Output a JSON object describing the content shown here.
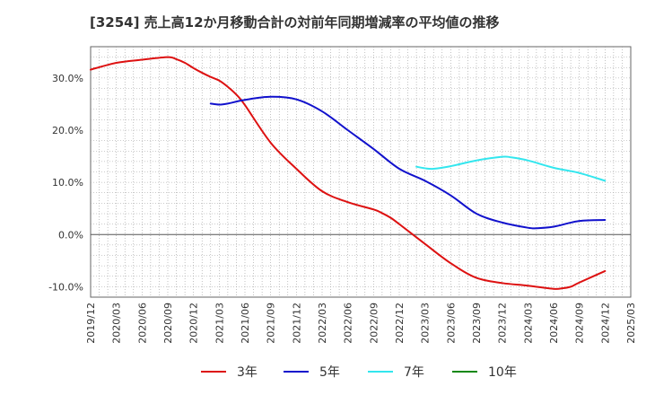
{
  "chart_data": {
    "type": "line",
    "title": "[3254]  売上高12か月移動合計の対前年同期増減率の平均値の推移",
    "xlabel": "",
    "ylabel": "",
    "x_ticks": [
      "2019/12",
      "2020/03",
      "2020/06",
      "2020/09",
      "2020/12",
      "2021/03",
      "2021/06",
      "2021/09",
      "2021/12",
      "2022/03",
      "2022/06",
      "2022/09",
      "2022/12",
      "2023/03",
      "2023/06",
      "2023/09",
      "2023/12",
      "2024/03",
      "2024/06",
      "2024/09",
      "2024/12",
      "2025/03"
    ],
    "y_ticks": [
      30,
      20,
      10,
      0,
      -10
    ],
    "y_tick_labels": [
      "30.0%",
      "20.0%",
      "10.0%",
      "0.0%",
      "-10.0%"
    ],
    "ylim": [
      -12,
      36
    ],
    "grid": true,
    "legend_position": "bottom",
    "series": [
      {
        "name": "3年",
        "color": "#dd1111",
        "points": [
          [
            "2019/12",
            31.6
          ],
          [
            "2020/03",
            32.9
          ],
          [
            "2020/06",
            33.5
          ],
          [
            "2020/09",
            34.0
          ],
          [
            "2020/10",
            33.6
          ],
          [
            "2020/11",
            32.9
          ],
          [
            "2020/12",
            31.9
          ],
          [
            "2021/01",
            31.0
          ],
          [
            "2021/02",
            30.2
          ],
          [
            "2021/03",
            29.5
          ],
          [
            "2021/04",
            28.3
          ],
          [
            "2021/05",
            26.8
          ],
          [
            "2021/06",
            24.8
          ],
          [
            "2021/09",
            17.6
          ],
          [
            "2021/12",
            12.6
          ],
          [
            "2022/03",
            8.3
          ],
          [
            "2022/06",
            6.2
          ],
          [
            "2022/09",
            4.8
          ],
          [
            "2022/10",
            4.1
          ],
          [
            "2022/11",
            3.2
          ],
          [
            "2022/12",
            2.0
          ],
          [
            "2023/03",
            -1.8
          ],
          [
            "2023/06",
            -5.5
          ],
          [
            "2023/09",
            -8.3
          ],
          [
            "2023/12",
            -9.3
          ],
          [
            "2024/03",
            -9.8
          ],
          [
            "2024/06",
            -10.4
          ],
          [
            "2024/07",
            -10.3
          ],
          [
            "2024/08",
            -10.0
          ],
          [
            "2024/09",
            -9.2
          ],
          [
            "2024/12",
            -7.0
          ]
        ]
      },
      {
        "name": "5年",
        "color": "#1111cc",
        "points": [
          [
            "2021/02",
            25.1
          ],
          [
            "2021/03",
            24.9
          ],
          [
            "2021/04",
            25.1
          ],
          [
            "2021/06",
            25.8
          ],
          [
            "2021/09",
            26.4
          ],
          [
            "2021/12",
            25.9
          ],
          [
            "2022/03",
            23.6
          ],
          [
            "2022/06",
            20.0
          ],
          [
            "2022/09",
            16.4
          ],
          [
            "2022/12",
            12.6
          ],
          [
            "2023/03",
            10.3
          ],
          [
            "2023/06",
            7.5
          ],
          [
            "2023/09",
            4.0
          ],
          [
            "2023/12",
            2.3
          ],
          [
            "2024/03",
            1.3
          ],
          [
            "2024/04",
            1.2
          ],
          [
            "2024/06",
            1.5
          ],
          [
            "2024/09",
            2.6
          ],
          [
            "2024/12",
            2.8
          ]
        ]
      },
      {
        "name": "7年",
        "color": "#33e6ee",
        "points": [
          [
            "2023/02",
            13.0
          ],
          [
            "2023/03",
            12.7
          ],
          [
            "2023/04",
            12.6
          ],
          [
            "2023/06",
            13.1
          ],
          [
            "2023/09",
            14.2
          ],
          [
            "2023/12",
            14.9
          ],
          [
            "2024/01",
            14.8
          ],
          [
            "2024/03",
            14.2
          ],
          [
            "2024/06",
            12.8
          ],
          [
            "2024/09",
            11.8
          ],
          [
            "2024/12",
            10.3
          ]
        ]
      },
      {
        "name": "10年",
        "color": "#118811",
        "points": []
      }
    ]
  }
}
